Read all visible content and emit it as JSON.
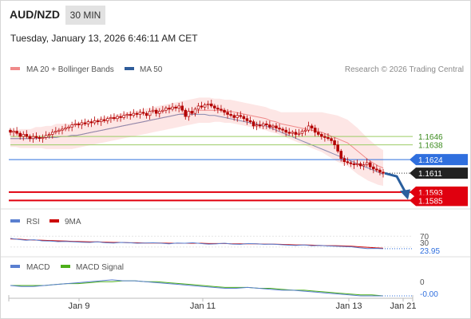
{
  "header": {
    "symbol": "AUD/NZD",
    "timeframe": "30 MIN",
    "datetime": "Tuesday, January 13, 2026 6:46:11 AM CET",
    "credit": "Research © 2026 Trading Central"
  },
  "colors": {
    "candle": "#b40000",
    "bollinger_fill": "#fde2e0",
    "ma20": "#f08a8a",
    "ma50": "#8a8ab0",
    "level_green": "#9ccc65",
    "level_blue": "#2f6fde",
    "level_red": "#e0000f",
    "arrow": "#2a5f9e",
    "rsi": "#5a7fd0",
    "rsi_ma": "#cc0000",
    "macd": "#5a7fd0",
    "macd_signal": "#4caf1a"
  },
  "chart_data": [
    {
      "type": "candlestick",
      "legend": [
        {
          "name": "MA 20 + Bollinger Bands",
          "color": "#f08a8a"
        },
        {
          "name": "MA 50",
          "color": "#2f5c9a"
        }
      ],
      "x_ticks": [
        "Jan 9",
        "Jan 11",
        "Jan 13",
        "Jan 21"
      ],
      "ylim": [
        1.158,
        1.17
      ],
      "current_price": "1.1611",
      "levels": [
        {
          "value": "1.1646",
          "kind": "resistance",
          "color": "#9ccc65"
        },
        {
          "value": "1.1638",
          "kind": "resistance",
          "color": "#9ccc65"
        },
        {
          "value": "1.1624",
          "kind": "pivot",
          "color": "#2f6fde"
        },
        {
          "value": "1.1593",
          "kind": "support",
          "color": "#e0000f"
        },
        {
          "value": "1.1585",
          "kind": "support",
          "color": "#e0000f"
        }
      ],
      "close": [
        1.165,
        1.1651,
        1.1649,
        1.1646,
        1.1648,
        1.1646,
        1.1644,
        1.1646,
        1.1645,
        1.1644,
        1.1645,
        1.1647,
        1.1648,
        1.165,
        1.1651,
        1.1652,
        1.1653,
        1.1654,
        1.1655,
        1.1657,
        1.1658,
        1.1657,
        1.1659,
        1.1658,
        1.166,
        1.1659,
        1.1661,
        1.166,
        1.1662,
        1.1661,
        1.1663,
        1.1664,
        1.1663,
        1.1665,
        1.1664,
        1.1666,
        1.1667,
        1.1666,
        1.1668,
        1.1667,
        1.1669,
        1.1668,
        1.1666,
        1.167,
        1.1671,
        1.1668,
        1.167,
        1.1671,
        1.1673,
        1.1672,
        1.1674,
        1.1673,
        1.1675,
        1.1671,
        1.1665,
        1.167,
        1.1668,
        1.1672,
        1.1675,
        1.1674,
        1.1676,
        1.1677,
        1.1675,
        1.1673,
        1.1672,
        1.1671,
        1.1669,
        1.1667,
        1.1666,
        1.1664,
        1.1666,
        1.1665,
        1.1663,
        1.1661,
        1.166,
        1.1656,
        1.1657,
        1.1656,
        1.1658,
        1.1657,
        1.1655,
        1.1656,
        1.1654,
        1.1653,
        1.1652,
        1.165,
        1.1649,
        1.165,
        1.1648,
        1.1649,
        1.1651,
        1.1652,
        1.1656,
        1.1654,
        1.165,
        1.1648,
        1.1646,
        1.1645,
        1.1644,
        1.1642,
        1.1638,
        1.1632,
        1.1625,
        1.1622,
        1.1621,
        1.162,
        1.1619,
        1.162,
        1.1618,
        1.1619,
        1.1621,
        1.1617,
        1.1615,
        1.1614,
        1.1612,
        1.1611
      ],
      "ma20": [
        1.1644,
        1.1644,
        1.1644,
        1.1644,
        1.1644,
        1.1645,
        1.1645,
        1.1645,
        1.1645,
        1.1646,
        1.1646,
        1.1646,
        1.1646,
        1.1647,
        1.1648,
        1.1649,
        1.165,
        1.1651,
        1.1652,
        1.1653,
        1.1654,
        1.1655,
        1.1656,
        1.1657,
        1.1658,
        1.1659,
        1.166,
        1.1661,
        1.1662,
        1.1663,
        1.1664,
        1.1665,
        1.1666,
        1.1667,
        1.1668,
        1.1669,
        1.167,
        1.1671,
        1.1671,
        1.1671,
        1.1671,
        1.1671,
        1.167,
        1.167,
        1.1669,
        1.1668,
        1.1667,
        1.1666,
        1.1665,
        1.1664,
        1.1663,
        1.1661,
        1.166,
        1.1658,
        1.1657,
        1.1656,
        1.1655,
        1.1654,
        1.1653,
        1.1652,
        1.1651,
        1.165,
        1.1648,
        1.1646,
        1.1644,
        1.1642,
        1.164,
        1.1636,
        1.1632,
        1.1628,
        1.1624,
        1.1621,
        1.1618,
        1.1616
      ],
      "ma50": [
        1.1644,
        1.1644,
        1.1644,
        1.1644,
        1.1644,
        1.1644,
        1.1645,
        1.1645,
        1.1645,
        1.1645,
        1.1646,
        1.1646,
        1.1647,
        1.1647,
        1.1648,
        1.1649,
        1.165,
        1.1651,
        1.1652,
        1.1653,
        1.1654,
        1.1655,
        1.1656,
        1.1657,
        1.1658,
        1.1659,
        1.166,
        1.1661,
        1.1662,
        1.1663,
        1.1664,
        1.1665,
        1.1666,
        1.1667,
        1.1667,
        1.1667,
        1.1667,
        1.1667,
        1.1667,
        1.1666,
        1.1666,
        1.1665,
        1.1664,
        1.1663,
        1.1662,
        1.1661,
        1.166,
        1.1659,
        1.1658,
        1.1657,
        1.1656,
        1.1654,
        1.1652,
        1.165,
        1.1648,
        1.1646,
        1.1644,
        1.1642,
        1.164,
        1.1638,
        1.1636,
        1.1634,
        1.1632,
        1.163,
        1.1628,
        1.1626,
        1.1624,
        1.1622,
        1.162,
        1.1618,
        1.1616,
        1.1614,
        1.1612,
        1.161
      ],
      "bb_width": [
        0.0008,
        0.0008,
        0.0009,
        0.0009,
        0.0009,
        0.001,
        0.001,
        0.0011,
        0.0011,
        0.0012,
        0.0012,
        0.0012,
        0.0012,
        0.0012,
        0.0012,
        0.0012,
        0.0012,
        0.0012,
        0.0012,
        0.0012,
        0.0012,
        0.0012,
        0.0012,
        0.0012,
        0.0012,
        0.0012,
        0.0012,
        0.0012,
        0.0012,
        0.0012,
        0.0012,
        0.0012,
        0.0012,
        0.0012,
        0.0012,
        0.0012,
        0.0012,
        0.0012,
        0.0012,
        0.0012,
        0.0011,
        0.0011,
        0.0011,
        0.0011,
        0.0011,
        0.0011,
        0.0011,
        0.0011,
        0.0011,
        0.0011,
        0.0011,
        0.0011,
        0.0011,
        0.0011,
        0.0012,
        0.0013,
        0.0014,
        0.0015,
        0.0016,
        0.0017,
        0.0018,
        0.0019,
        0.002,
        0.0021,
        0.0022,
        0.0022,
        0.0022,
        0.0022,
        0.0022,
        0.0021,
        0.002,
        0.0019,
        0.0018,
        0.0017
      ],
      "projection": {
        "from": "1.1611",
        "to": "1.1585"
      }
    },
    {
      "type": "line",
      "legend": [
        {
          "name": "RSI",
          "color": "#5a7fd0"
        },
        {
          "name": "9MA",
          "color": "#cc0000"
        }
      ],
      "y_labels": [
        "70",
        "30"
      ],
      "current_value": "23.95",
      "ylim": [
        0,
        100
      ],
      "rsi": [
        62,
        58,
        55,
        57,
        53,
        52,
        50,
        51,
        49,
        48,
        47,
        49,
        46,
        45,
        47,
        46,
        44,
        45,
        46,
        44,
        42,
        45,
        44,
        46,
        43,
        41,
        42,
        44,
        41,
        40,
        43,
        42,
        40,
        41,
        39,
        37,
        36,
        38,
        35,
        36,
        34,
        33,
        32,
        31,
        27,
        24,
        25,
        23.95
      ],
      "rsi_ma": [
        60,
        59,
        57,
        56,
        55,
        54,
        53,
        52,
        51,
        50,
        49,
        49,
        48,
        47,
        47,
        46,
        46,
        45,
        45,
        45,
        44,
        44,
        44,
        44,
        44,
        43,
        43,
        43,
        42,
        42,
        42,
        42,
        41,
        41,
        40,
        39,
        38,
        38,
        37,
        36,
        35,
        35,
        34,
        33,
        31,
        29,
        27,
        26
      ]
    },
    {
      "type": "line",
      "legend": [
        {
          "name": "MACD",
          "color": "#5a7fd0"
        },
        {
          "name": "MACD Signal",
          "color": "#4caf1a"
        }
      ],
      "y_labels": [
        "0"
      ],
      "current_value": "-0.00",
      "ylim": [
        -0.001,
        0.0012
      ],
      "macd": [
        0.0001,
        0.0,
        0.0,
        0.0001,
        0.0002,
        0.0003,
        0.0004,
        0.0005,
        0.0006,
        0.0007,
        0.0006,
        0.0006,
        0.0005,
        0.0004,
        0.0003,
        0.0002,
        0.0001,
        0.0,
        -0.0001,
        -0.0002,
        -0.0002,
        -0.0001,
        -0.0002,
        -0.0003,
        -0.0004,
        -0.0004,
        -0.0005,
        -0.0006,
        -0.0007,
        -0.0008,
        -0.0009,
        -0.001,
        -0.001,
        -0.001
      ],
      "signal": [
        0.0001,
        0.0001,
        0.0001,
        0.0001,
        0.0002,
        0.0003,
        0.0003,
        0.0004,
        0.0005,
        0.0005,
        0.0006,
        0.0006,
        0.0005,
        0.0005,
        0.0004,
        0.0003,
        0.0002,
        0.0001,
        0.0,
        -0.0001,
        -0.0001,
        -0.0001,
        -0.0002,
        -0.0002,
        -0.0003,
        -0.0004,
        -0.0004,
        -0.0005,
        -0.0006,
        -0.0007,
        -0.0008,
        -0.0009,
        -0.0009,
        -0.001
      ]
    }
  ]
}
